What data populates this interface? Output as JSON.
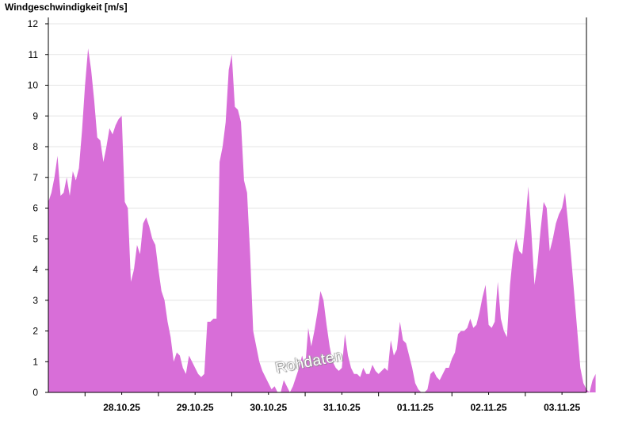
{
  "chart_data": {
    "type": "area",
    "title": "Windgeschwindigkeit [m/s]",
    "xlabel": "",
    "ylabel": "",
    "ylim": [
      0,
      12
    ],
    "y_ticks": [
      "0",
      "1",
      "2",
      "3",
      "4",
      "5",
      "6",
      "7",
      "8",
      "9",
      "10",
      "11",
      "12"
    ],
    "x_day_labels": [
      "28.10.25",
      "29.10.25",
      "30.10.25",
      "31.10.25",
      "01.11.25",
      "02.11.25",
      "03.11.25"
    ],
    "x_start": "27.10.25 12:00",
    "x_end": "03.11.25 23:00",
    "grid": true,
    "fill_color": "#d86ed8",
    "watermark": "Rohdaten",
    "series": [
      {
        "x": [
          "27.10.25 12:00",
          "27.10.25 13:00",
          "27.10.25 14:00",
          "27.10.25 15:00",
          "27.10.25 16:00",
          "27.10.25 17:00",
          "27.10.25 18:00",
          "27.10.25 19:00",
          "27.10.25 20:00",
          "27.10.25 21:00",
          "27.10.25 22:00",
          "27.10.25 23:00",
          "28.10.25 00:00",
          "28.10.25 01:00",
          "28.10.25 02:00",
          "28.10.25 03:00",
          "28.10.25 04:00",
          "28.10.25 05:00",
          "28.10.25 06:00",
          "28.10.25 07:00",
          "28.10.25 08:00",
          "28.10.25 09:00",
          "28.10.25 10:00",
          "28.10.25 11:00",
          "28.10.25 12:00",
          "28.10.25 13:00",
          "28.10.25 14:00",
          "28.10.25 15:00",
          "28.10.25 16:00",
          "28.10.25 17:00",
          "28.10.25 18:00",
          "28.10.25 19:00",
          "28.10.25 20:00",
          "28.10.25 21:00",
          "28.10.25 22:00",
          "28.10.25 23:00",
          "29.10.25 00:00",
          "29.10.25 01:00",
          "29.10.25 02:00",
          "29.10.25 03:00",
          "29.10.25 04:00",
          "29.10.25 05:00",
          "29.10.25 06:00",
          "29.10.25 07:00",
          "29.10.25 08:00",
          "29.10.25 09:00",
          "29.10.25 10:00",
          "29.10.25 11:00",
          "29.10.25 12:00",
          "29.10.25 13:00",
          "29.10.25 14:00",
          "29.10.25 15:00",
          "29.10.25 16:00",
          "29.10.25 17:00",
          "29.10.25 18:00",
          "29.10.25 19:00",
          "29.10.25 20:00",
          "29.10.25 21:00",
          "29.10.25 22:00",
          "29.10.25 23:00",
          "30.10.25 00:00",
          "30.10.25 01:00",
          "30.10.25 02:00",
          "30.10.25 03:00",
          "30.10.25 04:00",
          "30.10.25 05:00",
          "30.10.25 06:00",
          "30.10.25 07:00",
          "30.10.25 08:00",
          "30.10.25 09:00",
          "30.10.25 10:00",
          "30.10.25 11:00",
          "30.10.25 12:00",
          "30.10.25 13:00",
          "30.10.25 14:00",
          "30.10.25 15:00",
          "30.10.25 16:00",
          "30.10.25 17:00",
          "30.10.25 18:00",
          "30.10.25 19:00",
          "30.10.25 20:00",
          "30.10.25 21:00",
          "30.10.25 22:00",
          "30.10.25 23:00",
          "31.10.25 00:00",
          "31.10.25 01:00",
          "31.10.25 02:00",
          "31.10.25 03:00",
          "31.10.25 04:00",
          "31.10.25 05:00",
          "31.10.25 06:00",
          "31.10.25 07:00",
          "31.10.25 08:00",
          "31.10.25 09:00",
          "31.10.25 10:00",
          "31.10.25 11:00",
          "31.10.25 12:00",
          "31.10.25 13:00",
          "31.10.25 14:00",
          "31.10.25 15:00",
          "31.10.25 16:00",
          "31.10.25 17:00",
          "31.10.25 18:00",
          "31.10.25 19:00",
          "31.10.25 20:00",
          "31.10.25 21:00",
          "31.10.25 22:00",
          "31.10.25 23:00",
          "01.11.25 00:00",
          "01.11.25 01:00",
          "01.11.25 02:00",
          "01.11.25 03:00",
          "01.11.25 04:00",
          "01.11.25 05:00",
          "01.11.25 06:00",
          "01.11.25 07:00",
          "01.11.25 08:00",
          "01.11.25 09:00",
          "01.11.25 10:00",
          "01.11.25 11:00",
          "01.11.25 12:00",
          "01.11.25 13:00",
          "01.11.25 14:00",
          "01.11.25 15:00",
          "01.11.25 16:00",
          "01.11.25 17:00",
          "01.11.25 18:00",
          "01.11.25 19:00",
          "01.11.25 20:00",
          "01.11.25 21:00",
          "01.11.25 22:00",
          "01.11.25 23:00",
          "02.11.25 00:00",
          "02.11.25 01:00",
          "02.11.25 02:00",
          "02.11.25 03:00",
          "02.11.25 04:00",
          "02.11.25 05:00",
          "02.11.25 06:00",
          "02.11.25 07:00",
          "02.11.25 08:00",
          "02.11.25 09:00",
          "02.11.25 10:00",
          "02.11.25 11:00",
          "02.11.25 12:00",
          "02.11.25 13:00",
          "02.11.25 14:00",
          "02.11.25 15:00",
          "02.11.25 16:00",
          "02.11.25 17:00",
          "02.11.25 18:00",
          "02.11.25 19:00",
          "02.11.25 20:00",
          "02.11.25 21:00",
          "02.11.25 22:00",
          "02.11.25 23:00",
          "03.11.25 00:00",
          "03.11.25 01:00",
          "03.11.25 02:00",
          "03.11.25 03:00",
          "03.11.25 04:00",
          "03.11.25 05:00",
          "03.11.25 06:00",
          "03.11.25 07:00",
          "03.11.25 08:00",
          "03.11.25 09:00",
          "03.11.25 10:00",
          "03.11.25 11:00",
          "03.11.25 12:00",
          "03.11.25 13:00",
          "03.11.25 14:00",
          "03.11.25 15:00",
          "03.11.25 16:00",
          "03.11.25 17:00",
          "03.11.25 18:00",
          "03.11.25 19:00",
          "03.11.25 20:00",
          "03.11.25 21:00",
          "03.11.25 22:00",
          "03.11.25 23:00"
        ],
        "values": [
          6.2,
          6.5,
          7.0,
          7.7,
          6.4,
          6.5,
          7.0,
          6.4,
          7.2,
          6.9,
          7.3,
          8.5,
          10.0,
          11.2,
          10.5,
          9.5,
          8.3,
          8.2,
          7.5,
          8.0,
          8.6,
          8.4,
          8.7,
          8.9,
          9.0,
          6.2,
          6.0,
          3.6,
          4.0,
          4.8,
          4.5,
          5.5,
          5.7,
          5.4,
          5.0,
          4.8,
          4.0,
          3.3,
          3.0,
          2.3,
          1.8,
          1.0,
          1.3,
          1.2,
          0.8,
          0.6,
          1.2,
          1.0,
          0.8,
          0.6,
          0.5,
          0.6,
          2.3,
          2.3,
          2.4,
          2.4,
          7.5,
          8.0,
          8.8,
          10.5,
          11.0,
          9.3,
          9.2,
          8.8,
          6.9,
          6.5,
          4.5,
          2.0,
          1.5,
          1.0,
          0.7,
          0.5,
          0.3,
          0.1,
          0.2,
          0.0,
          0.0,
          0.4,
          0.2,
          0.0,
          0.2,
          0.5,
          0.8,
          1.2,
          0.8,
          2.1,
          1.5,
          2.0,
          2.6,
          3.3,
          3.0,
          2.2,
          1.5,
          1.0,
          0.8,
          0.7,
          0.8,
          1.9,
          1.2,
          0.8,
          0.6,
          0.6,
          0.5,
          0.8,
          0.6,
          0.6,
          0.9,
          0.7,
          0.6,
          0.7,
          0.8,
          0.7,
          1.7,
          1.2,
          1.4,
          2.3,
          1.7,
          1.6,
          1.2,
          0.8,
          0.3,
          0.1,
          0.0,
          0.0,
          0.1,
          0.6,
          0.7,
          0.5,
          0.4,
          0.6,
          0.8,
          0.8,
          1.1,
          1.3,
          1.9,
          2.0,
          2.0,
          2.1,
          2.4,
          2.1,
          2.2,
          2.6,
          3.1,
          3.5,
          2.2,
          2.1,
          2.3,
          3.6,
          2.4,
          2.0,
          1.8,
          3.5,
          4.5,
          5.0,
          4.6,
          4.5,
          5.5,
          6.7,
          5.2,
          3.5,
          4.2,
          5.3,
          6.2,
          6.0,
          4.6,
          5.0,
          5.5,
          5.8,
          6.0,
          6.5,
          5.5,
          4.4,
          3.2,
          2.0,
          0.8,
          0.3,
          0.1,
          0.0,
          0.4,
          0.6
        ]
      }
    ]
  }
}
